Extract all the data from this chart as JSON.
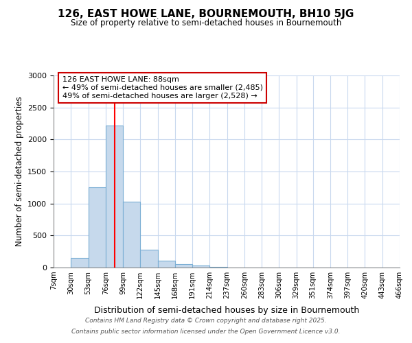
{
  "title": "126, EAST HOWE LANE, BOURNEMOUTH, BH10 5JG",
  "subtitle": "Size of property relative to semi-detached houses in Bournemouth",
  "xlabel": "Distribution of semi-detached houses by size in Bournemouth",
  "ylabel": "Number of semi-detached properties",
  "bin_edges": [
    7,
    30,
    53,
    76,
    99,
    122,
    145,
    168,
    191,
    214,
    237,
    260,
    283,
    306,
    329,
    351,
    374,
    397,
    420,
    443,
    466
  ],
  "bar_heights": [
    5,
    150,
    1250,
    2220,
    1030,
    280,
    105,
    50,
    30,
    10,
    3,
    0,
    0,
    0,
    0,
    0,
    0,
    0,
    0,
    0
  ],
  "bar_color": "#c6d9ec",
  "bar_edge_color": "#7aaed4",
  "red_line_x": 88,
  "ylim": [
    0,
    3000
  ],
  "yticks": [
    0,
    500,
    1000,
    1500,
    2000,
    2500,
    3000
  ],
  "annotation_title": "126 EAST HOWE LANE: 88sqm",
  "annotation_line1": "← 49% of semi-detached houses are smaller (2,485)",
  "annotation_line2": "49% of semi-detached houses are larger (2,528) →",
  "annotation_box_facecolor": "#ffffff",
  "annotation_box_edgecolor": "#cc0000",
  "footer1": "Contains HM Land Registry data © Crown copyright and database right 2025.",
  "footer2": "Contains public sector information licensed under the Open Government Licence v3.0.",
  "tick_labels": [
    "7sqm",
    "30sqm",
    "53sqm",
    "76sqm",
    "99sqm",
    "122sqm",
    "145sqm",
    "168sqm",
    "191sqm",
    "214sqm",
    "237sqm",
    "260sqm",
    "283sqm",
    "306sqm",
    "329sqm",
    "351sqm",
    "374sqm",
    "397sqm",
    "420sqm",
    "443sqm",
    "466sqm"
  ],
  "background_color": "#ffffff",
  "grid_color": "#c8d8ee"
}
